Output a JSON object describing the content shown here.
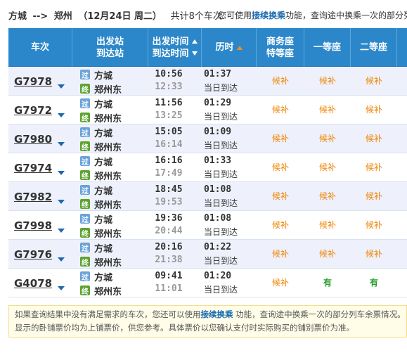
{
  "header": {
    "from": "方城",
    "arrow": "-->",
    "to": "郑州",
    "date": "（12月24日  周二）",
    "count": "共计8个车次",
    "hint_pre": "您可使用",
    "hint_link": "接续换乘",
    "hint_post": "功能，查询途中换乘一次的部分列"
  },
  "columns": {
    "train": "车次",
    "station_top": "出发站",
    "station_bottom": "到达站",
    "time_top": "出发时间",
    "time_bottom": "到达时间",
    "duration": "历时",
    "business_top": "商务座",
    "business_bottom": "特等座",
    "first": "一等座",
    "second": "二等座"
  },
  "badges": {
    "pass": "过",
    "end": "终"
  },
  "trains": [
    {
      "no": "G7978",
      "from": "方城",
      "to": "郑州东",
      "dep": "10:56",
      "arr": "12:33",
      "duration": "01:37",
      "arrival_day": "当日到达",
      "business": "候补",
      "first": "候补",
      "second": "候补"
    },
    {
      "no": "G7972",
      "from": "方城",
      "to": "郑州东",
      "dep": "11:56",
      "arr": "13:25",
      "duration": "01:29",
      "arrival_day": "当日到达",
      "business": "候补",
      "first": "候补",
      "second": "候补"
    },
    {
      "no": "G7980",
      "from": "方城",
      "to": "郑州东",
      "dep": "15:05",
      "arr": "16:14",
      "duration": "01:09",
      "arrival_day": "当日到达",
      "business": "候补",
      "first": "候补",
      "second": "候补"
    },
    {
      "no": "G7974",
      "from": "方城",
      "to": "郑州东",
      "dep": "16:16",
      "arr": "17:49",
      "duration": "01:33",
      "arrival_day": "当日到达",
      "business": "候补",
      "first": "候补",
      "second": "候补"
    },
    {
      "no": "G7982",
      "from": "方城",
      "to": "郑州东",
      "dep": "18:45",
      "arr": "19:53",
      "duration": "01:08",
      "arrival_day": "当日到达",
      "business": "候补",
      "first": "候补",
      "second": "候补"
    },
    {
      "no": "G7998",
      "from": "方城",
      "to": "郑州东",
      "dep": "19:36",
      "arr": "20:44",
      "duration": "01:08",
      "arrival_day": "当日到达",
      "business": "候补",
      "first": "候补",
      "second": "候补"
    },
    {
      "no": "G7976",
      "from": "方城",
      "to": "郑州东",
      "dep": "20:16",
      "arr": "21:38",
      "duration": "01:22",
      "arrival_day": "当日到达",
      "business": "候补",
      "first": "候补",
      "second": "候补"
    },
    {
      "no": "G4078",
      "from": "方城",
      "to": "郑州东",
      "dep": "09:41",
      "arr": "11:01",
      "duration": "01:20",
      "arrival_day": "当日到达",
      "business": "候补",
      "first": "有",
      "second": "有"
    }
  ],
  "notice": {
    "pre": "如果查询结果中没有满足需求的车次，您还可以使用",
    "link": "接续换乘",
    "post": " 功能，查询途中换乘一次的部分列车余票情况。",
    "line2": "显示的卧铺票价均为上铺票价，供您参考。具体票价以您确认支付时实际购买的铺别票价为准。"
  },
  "colors": {
    "header_bg": "#2b87c9",
    "wait": "#f08300",
    "available": "#27a027",
    "link": "#1b69b1"
  }
}
